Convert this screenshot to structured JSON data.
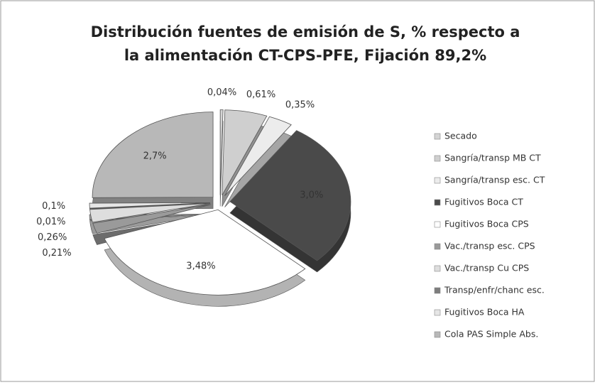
{
  "chart_data": {
    "type": "pie",
    "title": [
      "Distribución fuentes de emisión de S, % respecto a",
      "la alimentación CT-CPS-PFE, Fijación 89,2%"
    ],
    "categories": [
      "Secado",
      "Sangría/transp MB CT",
      "Sangría/transp esc. CT",
      "Fugitivos Boca CT",
      "Fugitivos Boca CPS",
      "Vac./transp esc. CPS",
      "Vac./transp Cu CPS",
      "Transp/enfr/chanc esc.",
      "Fugitivos Boca HA",
      "Cola PAS Simple Abs."
    ],
    "values": [
      0.04,
      0.61,
      0.35,
      3.0,
      3.48,
      0.21,
      0.26,
      0.01,
      0.1,
      2.7
    ],
    "value_labels": [
      "0,04%",
      "0,61%",
      "0,35%",
      "3,0%",
      "3,48%",
      "0,21%",
      "0,26%",
      "0,01%",
      "0,1%",
      "2,7%"
    ],
    "colors": [
      "#d4d4d4",
      "#cfcfcf",
      "#ececec",
      "#4a4a4a",
      "#ffffff",
      "#9a9a9a",
      "#dedede",
      "#7d7d7d",
      "#e6e6e6",
      "#b8b8b8"
    ]
  }
}
